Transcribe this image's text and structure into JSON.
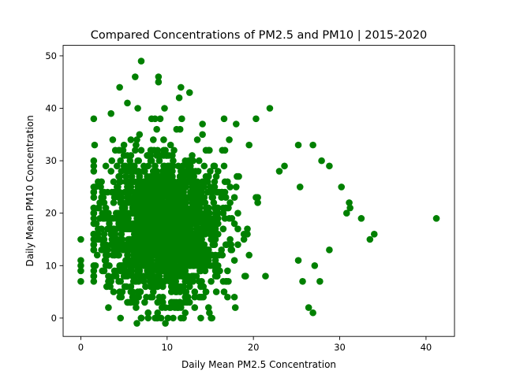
{
  "chart_data": {
    "type": "scatter",
    "title": "Compared Concentrations of PM2.5 and PM10 | 2015-2020",
    "xlabel": "Daily Mean PM2.5 Concentration",
    "ylabel": "Daily Mean PM10 Concentration",
    "xlim": [
      -2.05,
      43.3
    ],
    "ylim": [
      -3.5,
      52
    ],
    "x_ticks": [
      0,
      10,
      20,
      30,
      40
    ],
    "y_ticks": [
      0,
      10,
      20,
      30,
      40,
      50
    ],
    "grid": false,
    "marker_color": "#008000",
    "points_explicit": [
      [
        0,
        15
      ],
      [
        0,
        11
      ],
      [
        0,
        10
      ],
      [
        0,
        9
      ],
      [
        0,
        7
      ],
      [
        7,
        49
      ],
      [
        6.3,
        46
      ],
      [
        9,
        46
      ],
      [
        9,
        45
      ],
      [
        4.5,
        44
      ],
      [
        11.6,
        44
      ],
      [
        11.4,
        42
      ],
      [
        5.4,
        41
      ],
      [
        12.6,
        43
      ],
      [
        6.6,
        40
      ],
      [
        9.7,
        40
      ],
      [
        21.9,
        40
      ],
      [
        3.5,
        39
      ],
      [
        8.2,
        38
      ],
      [
        9.2,
        38
      ],
      [
        16.6,
        38
      ],
      [
        20.3,
        38
      ],
      [
        18,
        37
      ],
      [
        26.9,
        33
      ],
      [
        25.2,
        33
      ],
      [
        27.9,
        30
      ],
      [
        28.8,
        29
      ],
      [
        23.6,
        29
      ],
      [
        23,
        28
      ],
      [
        30.2,
        25
      ],
      [
        25.4,
        25
      ],
      [
        31.1,
        22
      ],
      [
        31.2,
        21
      ],
      [
        30.8,
        20
      ],
      [
        32.5,
        19
      ],
      [
        41.2,
        19
      ],
      [
        34,
        16
      ],
      [
        33.5,
        15
      ],
      [
        28.8,
        13
      ],
      [
        25.2,
        11
      ],
      [
        27.1,
        10
      ],
      [
        25.7,
        7
      ],
      [
        27.7,
        7
      ],
      [
        26.4,
        2
      ],
      [
        26.9,
        1
      ],
      [
        4.6,
        0
      ],
      [
        9.8,
        -1
      ],
      [
        6.5,
        -1
      ],
      [
        15.2,
        0
      ],
      [
        17.8,
        4
      ],
      [
        14.8,
        2
      ],
      [
        14.5,
        5
      ]
    ],
    "cluster": {
      "count": 2000,
      "x_mean": 9.3,
      "x_sd": 3.6,
      "x_min": 1.5,
      "x_max": 24.5,
      "y_mean": 17.5,
      "y_sd": 6.8,
      "y_min": 0,
      "y_max": 38,
      "seed": 20150
    }
  }
}
